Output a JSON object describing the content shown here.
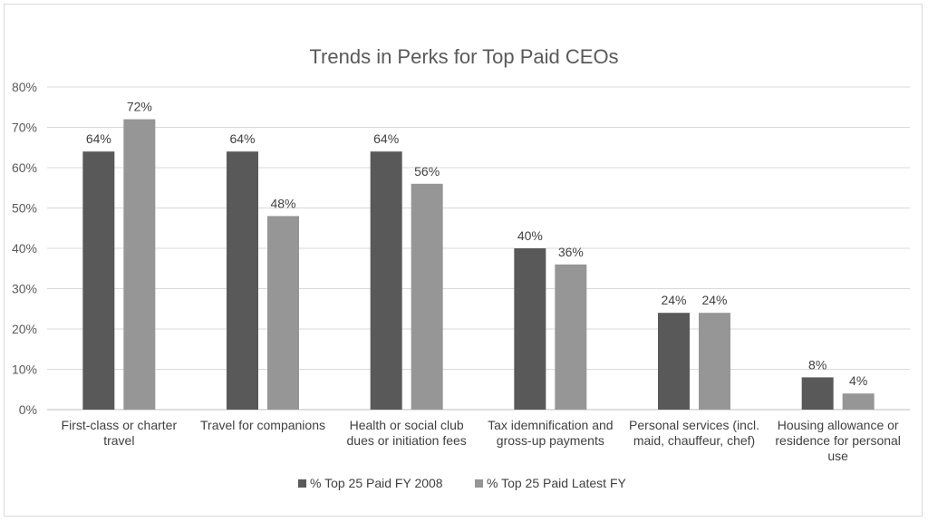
{
  "chart_data": {
    "type": "bar",
    "title": "Trends in Perks for Top Paid CEOs",
    "categories": [
      [
        "First-class or charter",
        "travel"
      ],
      [
        "Travel for companions"
      ],
      [
        "Health or social club",
        "dues or initiation fees"
      ],
      [
        "Tax idemnification and",
        "gross-up payments"
      ],
      [
        "Personal services (incl.",
        "maid, chauffeur, chef)"
      ],
      [
        "Housing allowance or",
        "residence for personal",
        "use"
      ]
    ],
    "series": [
      {
        "name": "% Top 25 Paid FY 2008",
        "values": [
          64,
          64,
          64,
          40,
          24,
          8
        ],
        "labels": [
          "64%",
          "64%",
          "64%",
          "40%",
          "24%",
          "8%"
        ],
        "color": "#595959"
      },
      {
        "name": "% Top 25 Paid Latest FY",
        "values": [
          72,
          48,
          56,
          36,
          24,
          4
        ],
        "labels": [
          "72%",
          "48%",
          "56%",
          "36%",
          "24%",
          "4%"
        ],
        "color": "#969696"
      }
    ],
    "ylim": [
      0,
      80
    ],
    "yticks": [
      "0%",
      "10%",
      "20%",
      "30%",
      "40%",
      "50%",
      "60%",
      "70%",
      "80%"
    ],
    "xlabel": "",
    "ylabel": "",
    "grid": true,
    "legend": "bottom"
  }
}
